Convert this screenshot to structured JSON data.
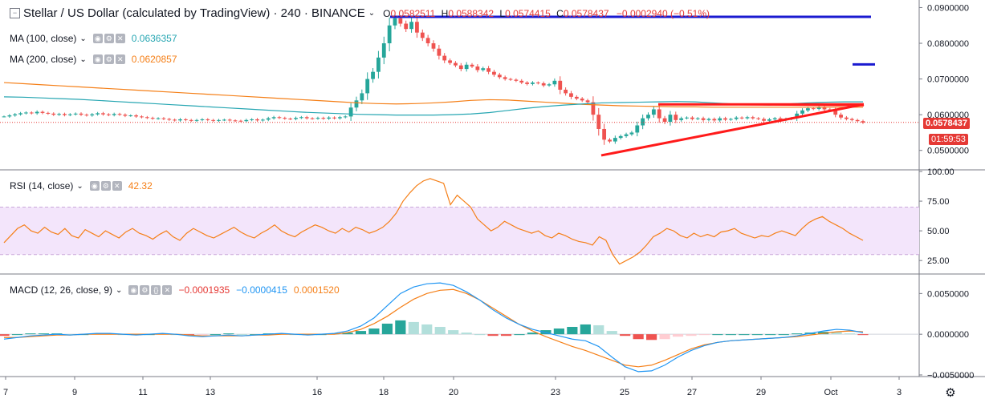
{
  "header": {
    "symbol_title": "Stellar / US Dollar (calculated by TradingView) · 240 · BINANCE",
    "ohlc": {
      "o_label": "O",
      "o": "0.0582511",
      "h_label": "H",
      "h": "0.0588342",
      "l_label": "L",
      "l": "0.0574415",
      "c_label": "C",
      "c": "0.0578437",
      "change": "−0.0002940 (−0.51%)"
    }
  },
  "indicators": {
    "ma100": {
      "label": "MA (100, close)",
      "value": "0.0636357",
      "color": "#26a6b2"
    },
    "ma200": {
      "label": "MA (200, close)",
      "value": "0.0620857",
      "color": "#f57f17"
    },
    "rsi": {
      "label": "RSI (14, close)",
      "value": "42.32",
      "color": "#f57f17"
    },
    "macd": {
      "label": "MACD (12, 26, close, 9)",
      "hist": "−0.0001935",
      "macd": "−0.0000415",
      "signal": "0.0001520",
      "hist_color": "#e53935",
      "macd_color": "#2196f3",
      "signal_color": "#f57f17"
    }
  },
  "price_scale": {
    "ticks": [
      "0.0900000",
      "0.0800000",
      "0.0700000",
      "0.0600000",
      "0.0500000"
    ],
    "last_price_label": "0.0578437",
    "countdown_label": "01:59:53"
  },
  "rsi_scale": {
    "ticks": [
      "100.00",
      "75.00",
      "50.00",
      "25.00"
    ]
  },
  "macd_scale": {
    "ticks": [
      "0.0050000",
      "0.0000000",
      "−0.0050000"
    ]
  },
  "time_axis": {
    "ticks": [
      "7",
      "9",
      "11",
      "13",
      "16",
      "18",
      "20",
      "23",
      "25",
      "27",
      "29",
      "Oct",
      "3"
    ]
  },
  "chart_data": {
    "type": "candlestick",
    "symbol": "XLM/USD",
    "interval": "240",
    "exchange": "BINANCE",
    "price_ylim": [
      0.045,
      0.091
    ],
    "rsi_ylim": [
      15,
      100
    ],
    "macd_ylim": [
      -0.0052,
      0.0072
    ],
    "closes": [
      0.0595,
      0.0598,
      0.0601,
      0.0604,
      0.0606,
      0.0604,
      0.0608,
      0.0605,
      0.0603,
      0.06,
      0.0602,
      0.0599,
      0.0601,
      0.0603,
      0.06,
      0.0598,
      0.0601,
      0.0604,
      0.0601,
      0.0599,
      0.0602,
      0.06,
      0.0597,
      0.0598,
      0.0595,
      0.0593,
      0.0591,
      0.0589,
      0.059,
      0.0588,
      0.0586,
      0.0584,
      0.0587,
      0.0585,
      0.0583,
      0.0585,
      0.0587,
      0.0585,
      0.0583,
      0.0585,
      0.0586,
      0.0584,
      0.0583,
      0.0582,
      0.0585,
      0.0587,
      0.0584,
      0.0586,
      0.059,
      0.0593,
      0.0591,
      0.0589,
      0.0588,
      0.0591,
      0.0593,
      0.059,
      0.0589,
      0.0591,
      0.0589,
      0.0592,
      0.059,
      0.0593,
      0.0595,
      0.062,
      0.064,
      0.066,
      0.07,
      0.072,
      0.076,
      0.08,
      0.085,
      0.087,
      0.0855,
      0.084,
      0.086,
      0.083,
      0.0815,
      0.08,
      0.0785,
      0.0765,
      0.0752,
      0.0745,
      0.0738,
      0.0728,
      0.074,
      0.0735,
      0.0725,
      0.073,
      0.072,
      0.0712,
      0.0705,
      0.07,
      0.0698,
      0.0695,
      0.069,
      0.0686,
      0.069,
      0.0688,
      0.0682,
      0.0685,
      0.0695,
      0.067,
      0.066,
      0.065,
      0.0645,
      0.064,
      0.0635,
      0.06,
      0.056,
      0.053,
      0.0525,
      0.0535,
      0.054,
      0.0545,
      0.055,
      0.057,
      0.059,
      0.06,
      0.0615,
      0.059,
      0.058,
      0.06,
      0.0585,
      0.059,
      0.0592,
      0.0588,
      0.059,
      0.0585,
      0.0588,
      0.0584,
      0.059,
      0.0586,
      0.0588,
      0.0592,
      0.059,
      0.0593,
      0.059,
      0.0588,
      0.0583,
      0.0587,
      0.059,
      0.0585,
      0.0588,
      0.059,
      0.0603,
      0.0612,
      0.0618,
      0.0616,
      0.062,
      0.0615,
      0.0612,
      0.06,
      0.0592,
      0.0588,
      0.0585,
      0.0582,
      0.0578
    ],
    "ma100": [
      0.065,
      0.0649,
      0.0647,
      0.0645,
      0.0643,
      0.064,
      0.0637,
      0.0634,
      0.0631,
      0.0628,
      0.0625,
      0.0622,
      0.0619,
      0.0616,
      0.0613,
      0.061,
      0.0607,
      0.0605,
      0.0603,
      0.0601,
      0.06,
      0.0599,
      0.0599,
      0.0599,
      0.06,
      0.0602,
      0.0606,
      0.0612,
      0.0618,
      0.0623,
      0.0627,
      0.063,
      0.0633,
      0.0634,
      0.0635,
      0.0636,
      0.0637,
      0.0636,
      0.0633,
      0.063,
      0.0628,
      0.0627,
      0.063,
      0.0633,
      0.0635,
      0.0636,
      0.0636
    ],
    "ma200": [
      0.069,
      0.0687,
      0.0684,
      0.0681,
      0.0678,
      0.0675,
      0.0672,
      0.0669,
      0.0666,
      0.0663,
      0.066,
      0.0657,
      0.0654,
      0.0651,
      0.0648,
      0.0645,
      0.0642,
      0.0639,
      0.0636,
      0.0633,
      0.0631,
      0.063,
      0.0631,
      0.0633,
      0.0636,
      0.064,
      0.0642,
      0.0641,
      0.0638,
      0.0635,
      0.0632,
      0.0629,
      0.0627,
      0.0625,
      0.0624,
      0.0623,
      0.0622,
      0.0622,
      0.0621,
      0.0621,
      0.0621,
      0.0621,
      0.0621,
      0.0621,
      0.0621,
      0.0621,
      0.0621
    ],
    "rsi": [
      40,
      46,
      52,
      55,
      50,
      48,
      53,
      49,
      47,
      52,
      46,
      44,
      51,
      48,
      45,
      50,
      47,
      44,
      49,
      52,
      48,
      46,
      43,
      47,
      50,
      45,
      42,
      48,
      52,
      49,
      46,
      44,
      47,
      50,
      53,
      49,
      46,
      44,
      48,
      51,
      55,
      50,
      47,
      45,
      49,
      52,
      55,
      53,
      50,
      48,
      52,
      49,
      53,
      51,
      48,
      50,
      53,
      58,
      65,
      75,
      82,
      88,
      92,
      94,
      92,
      90,
      72,
      80,
      75,
      70,
      60,
      55,
      50,
      53,
      58,
      55,
      52,
      50,
      48,
      50,
      46,
      44,
      48,
      46,
      43,
      41,
      40,
      38,
      45,
      42,
      30,
      22,
      25,
      28,
      32,
      38,
      45,
      48,
      52,
      50,
      46,
      44,
      48,
      45,
      47,
      45,
      49,
      50,
      52,
      48,
      46,
      44,
      46,
      45,
      48,
      50,
      48,
      46,
      52,
      57,
      60,
      62,
      58,
      55,
      52,
      48,
      45,
      42
    ],
    "macd_line": [
      -0.0006,
      -0.0004,
      -0.0002,
      -0.0001,
      0.0,
      -0.0001,
      0.0,
      0.0001,
      0.0001,
      0.0,
      -0.0001,
      0.0,
      0.0001,
      0.0,
      -0.0002,
      -0.0003,
      -0.0002,
      -0.0001,
      -0.0002,
      -0.0001,
      0.0,
      0.0001,
      0.0,
      -0.0001,
      0.0,
      0.0001,
      0.0004,
      0.001,
      0.002,
      0.0035,
      0.005,
      0.0058,
      0.0062,
      0.0063,
      0.006,
      0.0052,
      0.0042,
      0.003,
      0.002,
      0.0012,
      0.0006,
      0.0002,
      -0.0002,
      -0.0006,
      -0.0008,
      -0.0015,
      -0.0028,
      -0.004,
      -0.0046,
      -0.0045,
      -0.0038,
      -0.0028,
      -0.002,
      -0.0014,
      -0.001,
      -0.0008,
      -0.0007,
      -0.0006,
      -0.0005,
      -0.0004,
      -0.0002,
      0.0001,
      0.0004,
      0.0006,
      0.0005,
      0.0002
    ],
    "signal_line": [
      -0.0004,
      -0.0004,
      -0.0003,
      -0.0002,
      -0.0001,
      -0.0001,
      0.0,
      0.0,
      0.0,
      0.0,
      0.0,
      0.0,
      0.0,
      0.0,
      -0.0001,
      -0.0002,
      -0.0002,
      -0.0002,
      -0.0002,
      -0.0001,
      -0.0001,
      0.0,
      0.0,
      0.0,
      0.0,
      0.0,
      0.0002,
      0.0006,
      0.0013,
      0.0022,
      0.0033,
      0.0043,
      0.005,
      0.0054,
      0.0055,
      0.005,
      0.0042,
      0.0032,
      0.0022,
      0.0012,
      0.0004,
      -0.0003,
      -0.0009,
      -0.0015,
      -0.002,
      -0.0026,
      -0.0032,
      -0.0038,
      -0.004,
      -0.0038,
      -0.0032,
      -0.0025,
      -0.0018,
      -0.0013,
      -0.001,
      -0.0008,
      -0.0007,
      -0.0006,
      -0.0005,
      -0.0004,
      -0.0003,
      -0.0001,
      0.0001,
      0.0003,
      0.0004,
      0.0003
    ],
    "annotations": [
      {
        "type": "horizontal-line",
        "color": "#1a1ad0",
        "price": 0.0874
      },
      {
        "type": "horizontal-segment",
        "color": "#1a1ad0",
        "price": 0.0741
      },
      {
        "type": "ascending-triangle",
        "color": "#ff1a1a",
        "resistance": 0.0629,
        "support_start": 0.0486,
        "support_end": 0.0629
      }
    ]
  }
}
